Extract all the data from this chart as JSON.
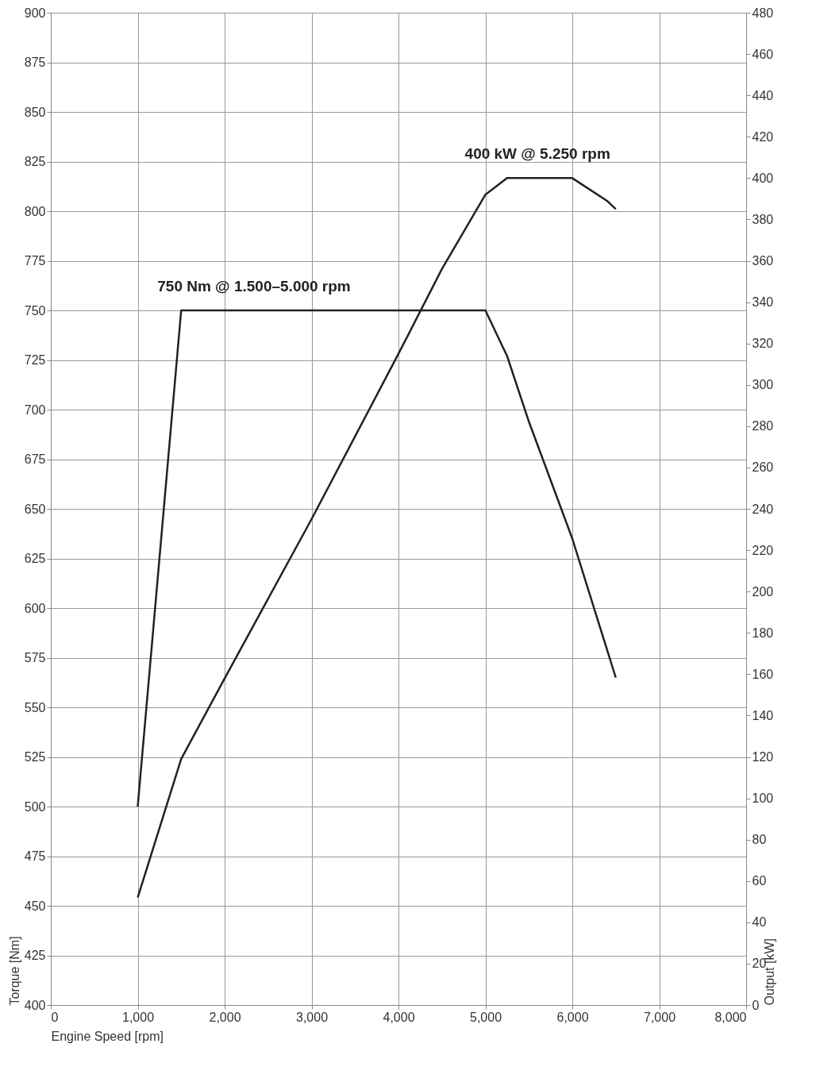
{
  "chart_data": {
    "type": "line",
    "xlabel": "Engine Speed [rpm]",
    "ylabel": "Torque [Nm]",
    "y2label": "Output [kW]",
    "xlim": [
      0,
      8000
    ],
    "xticks": [
      0,
      {
        "value": 1000,
        "label": "1,000"
      },
      {
        "value": 2000,
        "label": "2,000"
      },
      {
        "value": 3000,
        "label": "3,000"
      },
      {
        "value": 4000,
        "label": "4,000"
      },
      {
        "value": 5000,
        "label": "5,000"
      },
      {
        "value": 6000,
        "label": "6,000"
      },
      {
        "value": 7000,
        "label": "7,000"
      },
      {
        "value": 8000,
        "label": "8,000"
      }
    ],
    "ylim": [
      400,
      900
    ],
    "yticks": [
      400,
      425,
      450,
      475,
      500,
      525,
      550,
      575,
      600,
      625,
      650,
      675,
      700,
      725,
      750,
      775,
      800,
      825,
      850,
      875,
      900
    ],
    "y2lim": [
      0,
      480
    ],
    "y2ticks": [
      0,
      20,
      40,
      60,
      80,
      100,
      120,
      140,
      160,
      180,
      200,
      220,
      240,
      260,
      280,
      300,
      320,
      340,
      360,
      380,
      400,
      420,
      440,
      460,
      480
    ],
    "grid": true,
    "series": [
      {
        "color": "#222222",
        "x": [
          1000,
          1500,
          5000,
          5250,
          5500,
          6000,
          6500
        ],
        "values": [
          500,
          750,
          750,
          727,
          694,
          635,
          565
        ]
      },
      {
        "color": "#222222",
        "axis": "y2",
        "x": [
          1000,
          1500,
          2000,
          3000,
          3500,
          4000,
          4500,
          5000,
          5250,
          6000,
          6400,
          6500
        ],
        "values": [
          52,
          119,
          158,
          235,
          275,
          315,
          356,
          392,
          400,
          400,
          389,
          385
        ]
      }
    ],
    "annotations": [
      {
        "text": "750 Nm @ 1.500–5.000 rpm",
        "x": 1500,
        "y": 750
      },
      "400 kW @ 5.250 rpm"
    ]
  }
}
